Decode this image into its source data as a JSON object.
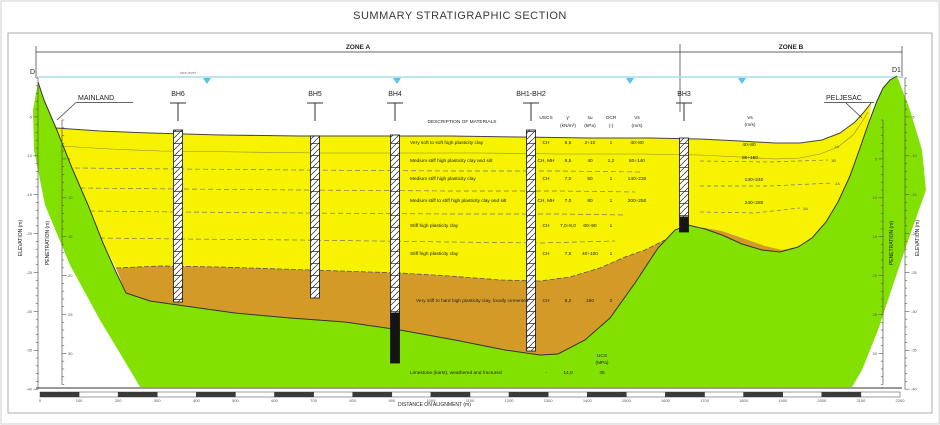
{
  "title": "SUMMARY STRATIGRAPHIC SECTION",
  "zone_a_label": "ZONE A",
  "zone_b_label": "ZONE B",
  "section_start_label": "D",
  "section_end_label": "D1",
  "mainland_label": "MAINLAND",
  "peljesac_label": "PELJESAC",
  "sea_level_label": "sea level",
  "boreholes": [
    {
      "label": "BH6"
    },
    {
      "label": "BH5"
    },
    {
      "label": "BH4"
    },
    {
      "label": "BH1-BH2"
    },
    {
      "label": "BH3"
    }
  ],
  "materials_table": {
    "description_header": "DESCRIPTION OF MATERIALS",
    "col_uscs": "USCS",
    "col_gamma_sym": "γ'",
    "col_gamma_unit": "(kN/m³)",
    "col_su_sym": "su",
    "col_su_unit": "(kPa)",
    "col_ocr_sym": "OCR",
    "col_ocr_unit": "(-)",
    "col_vs_sym": "Vs",
    "col_vs_unit": "(m/s)",
    "rows": [
      {
        "desc": "Very soft to soft high plasticity clay",
        "uscs": "CH",
        "gamma": "6,5",
        "su": "2÷10",
        "ocr": "1",
        "vs": "40÷80"
      },
      {
        "desc": "Medium stiff high plasticity clay and silt",
        "uscs": "CH, MH",
        "gamma": "6,5",
        "su": "40",
        "ocr": "1,2",
        "vs": "80÷140"
      },
      {
        "desc": "Medium stiff high plasticity clay",
        "uscs": "CH",
        "gamma": "7,0",
        "su": "50",
        "ocr": "1",
        "vs": "140÷230"
      },
      {
        "desc": "Medium stiff to stiff high plasticity clay and silt",
        "uscs": "CH, MH",
        "gamma": "7,0",
        "su": "80",
        "ocr": "1",
        "vs": "200÷250"
      },
      {
        "desc": "Stiff high plasticity clay",
        "uscs": "CH",
        "gamma": "7,0÷8,0",
        "su": "60÷90",
        "ocr": "1",
        "vs": ""
      },
      {
        "desc": "Stiff high plasticity clay",
        "uscs": "CH",
        "gamma": "7,5",
        "su": "40÷100",
        "ocr": "1",
        "vs": ""
      }
    ],
    "cemented_row": {
      "desc": "Very stiff to hard high plasticity clay, locally cemented",
      "uscs": "CH",
      "gamma": "8,2",
      "su": "150",
      "ocr": "2"
    },
    "rock_row": {
      "desc": "Limestone (karst), weathered and fractured",
      "uscs": "-",
      "gamma": "14,0",
      "ucs": "35"
    },
    "ucs_sym": "UCS",
    "ucs_unit": "(MPa)"
  },
  "zone_b_profile": {
    "vs_sym": "Vs",
    "vs_unit": "(m/s)",
    "values": [
      "40÷80",
      "80÷150",
      "140÷240",
      "240÷280"
    ],
    "layer_tags": [
      "1A",
      "1B",
      "2A",
      "3A"
    ]
  },
  "axes": {
    "elevation_label": "ELEVATION (m)",
    "penetration_label": "PENETRATION (m)",
    "distance_label": "DISTANCE ON ALIGNMENT (m)",
    "elevation_ticks": [
      "-5",
      "-10",
      "-15",
      "-20",
      "-25",
      "-30",
      "-35",
      "-40"
    ],
    "penetration_ticks": [
      "5",
      "10",
      "15",
      "20",
      "25",
      "30"
    ],
    "chainage_ticks": [
      "0",
      "100",
      "200",
      "300",
      "400",
      "500",
      "600",
      "700",
      "800",
      "900",
      "1000",
      "1100",
      "1200",
      "1300",
      "1400",
      "1500",
      "1600",
      "1700",
      "1800",
      "1900",
      "2000",
      "2100",
      "2200"
    ]
  },
  "colors": {
    "clay_soft": "#EFF0A0",
    "clay": "#F7F200",
    "clay_cemented": "#D49A28",
    "limestone": "#82E100",
    "sea": "#53C6E4"
  }
}
